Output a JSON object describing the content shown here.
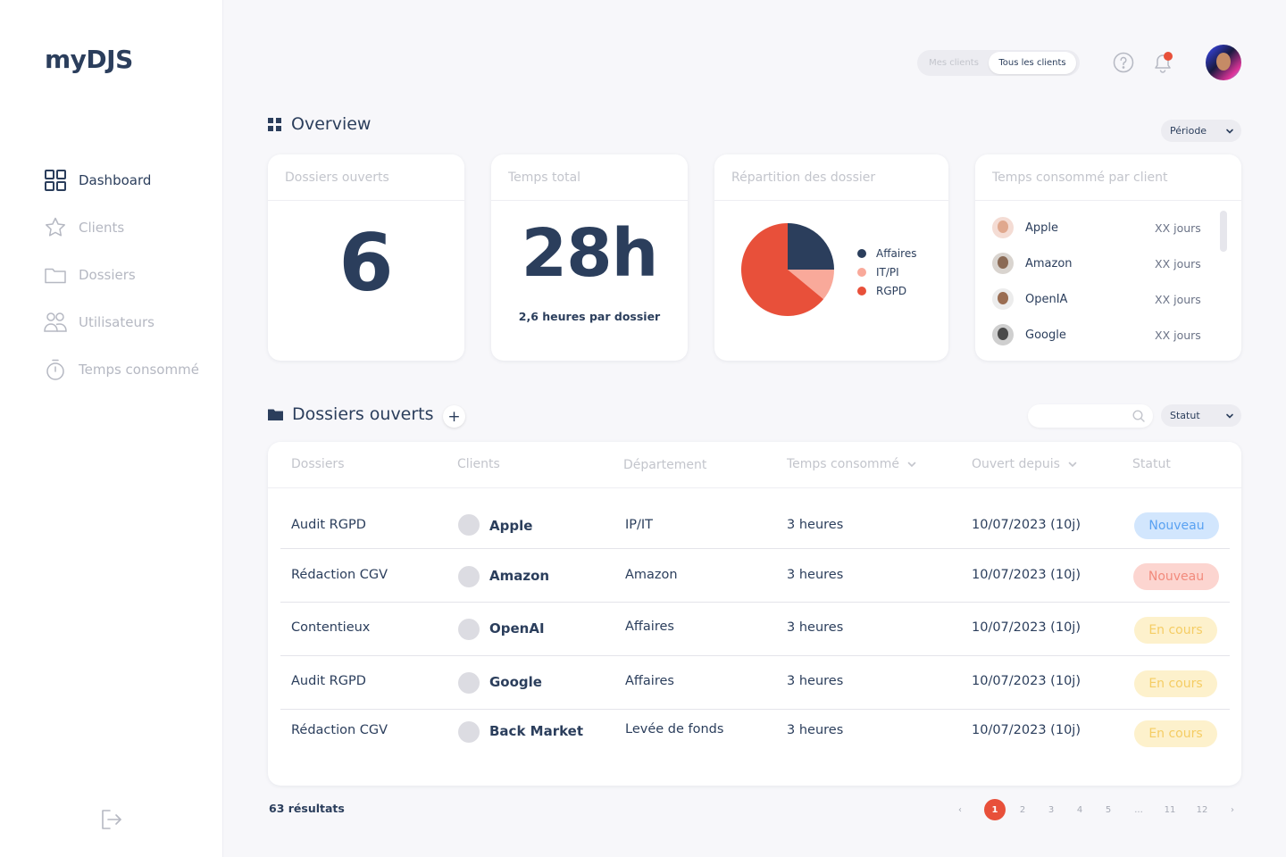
{
  "app": {
    "logo": "myDJS"
  },
  "sidebar": {
    "items": [
      {
        "label": "Dashboard",
        "icon": "grid-icon",
        "active": true
      },
      {
        "label": "Clients",
        "icon": "star-icon",
        "active": false
      },
      {
        "label": "Dossiers",
        "icon": "folder-icon",
        "active": false
      },
      {
        "label": "Utilisateurs",
        "icon": "users-icon",
        "active": false
      },
      {
        "label": "Temps consommé",
        "icon": "stopwatch-icon",
        "active": false
      }
    ],
    "logout_icon": "logout-icon"
  },
  "topbar": {
    "toggle": {
      "left": "Mes clients",
      "right": "Tous les clients",
      "selected": "Tous les clients"
    },
    "help_icon": "help-icon",
    "bell_icon": "bell-icon",
    "notification_color": "#e8503a"
  },
  "overview": {
    "title": "Overview",
    "periode_label": "Période",
    "cards": {
      "dossiers": {
        "title": "Dossiers ouverts",
        "value": "6"
      },
      "temps": {
        "title": "Temps total",
        "value": "28h",
        "sub": "2,6 heures par dossier"
      },
      "repartition": {
        "title": "Répartition des dossier"
      },
      "clients": {
        "title": "Temps consommé par client",
        "items": [
          {
            "name": "Apple",
            "value": "XX jours"
          },
          {
            "name": "Amazon",
            "value": "XX jours"
          },
          {
            "name": "OpenIA",
            "value": "XX jours"
          },
          {
            "name": "Google",
            "value": "XX jours"
          }
        ]
      }
    }
  },
  "chart_data": {
    "type": "pie",
    "title": "Répartition des dossier",
    "legend_position": "right",
    "series": [
      {
        "name": "Affaires",
        "value": 25,
        "color": "#2b3e5c"
      },
      {
        "name": "IT/PI",
        "value": 11,
        "color": "#f9a99a"
      },
      {
        "name": "RGPD",
        "value": 64,
        "color": "#e8503a"
      }
    ]
  },
  "dossiers": {
    "title": "Dossiers ouverts",
    "add_label": "+",
    "search_placeholder": "",
    "statut_label": "Statut",
    "columns": [
      "Dossiers",
      "Clients",
      "Département",
      "Temps consommé",
      "Ouvert depuis",
      "Statut"
    ],
    "rows": [
      {
        "dossier": "Audit RGPD",
        "client": "Apple",
        "departement": "IP/IT",
        "temps": "3 heures",
        "ouvert": "10/07/2023 (10j)",
        "statut": "Nouveau",
        "badge_bg": "#d2e6fd",
        "badge_fg": "#5aa2f2"
      },
      {
        "dossier": "Rédaction CGV",
        "client": "Amazon",
        "departement": "Amazon",
        "temps": "3 heures",
        "ouvert": "10/07/2023 (10j)",
        "statut": "Nouveau",
        "badge_bg": "#fcd5d0",
        "badge_fg": "#f28a7c"
      },
      {
        "dossier": "Contentieux",
        "client": "OpenAI",
        "departement": "Affaires",
        "temps": "3 heures",
        "ouvert": "10/07/2023 (10j)",
        "statut": "En cours",
        "badge_bg": "#fdf1cc",
        "badge_fg": "#f5cd64"
      },
      {
        "dossier": "Audit RGPD",
        "client": "Google",
        "departement": "Affaires",
        "temps": "3 heures",
        "ouvert": "10/07/2023 (10j)",
        "statut": "En cours",
        "badge_bg": "#fdf1cc",
        "badge_fg": "#f5cd64"
      },
      {
        "dossier": "Rédaction CGV",
        "client": "Back Market",
        "departement": "Levée de fonds",
        "temps": "3 heures",
        "ouvert": "10/07/2023 (10j)",
        "statut": "En cours",
        "badge_bg": "#fdf1cc",
        "badge_fg": "#f5cd64"
      }
    ]
  },
  "footer": {
    "results": "63 résultats",
    "pages": [
      "‹",
      "1",
      "2",
      "3",
      "4",
      "5",
      "...",
      "11",
      "12",
      "›"
    ],
    "current_page": "1"
  }
}
